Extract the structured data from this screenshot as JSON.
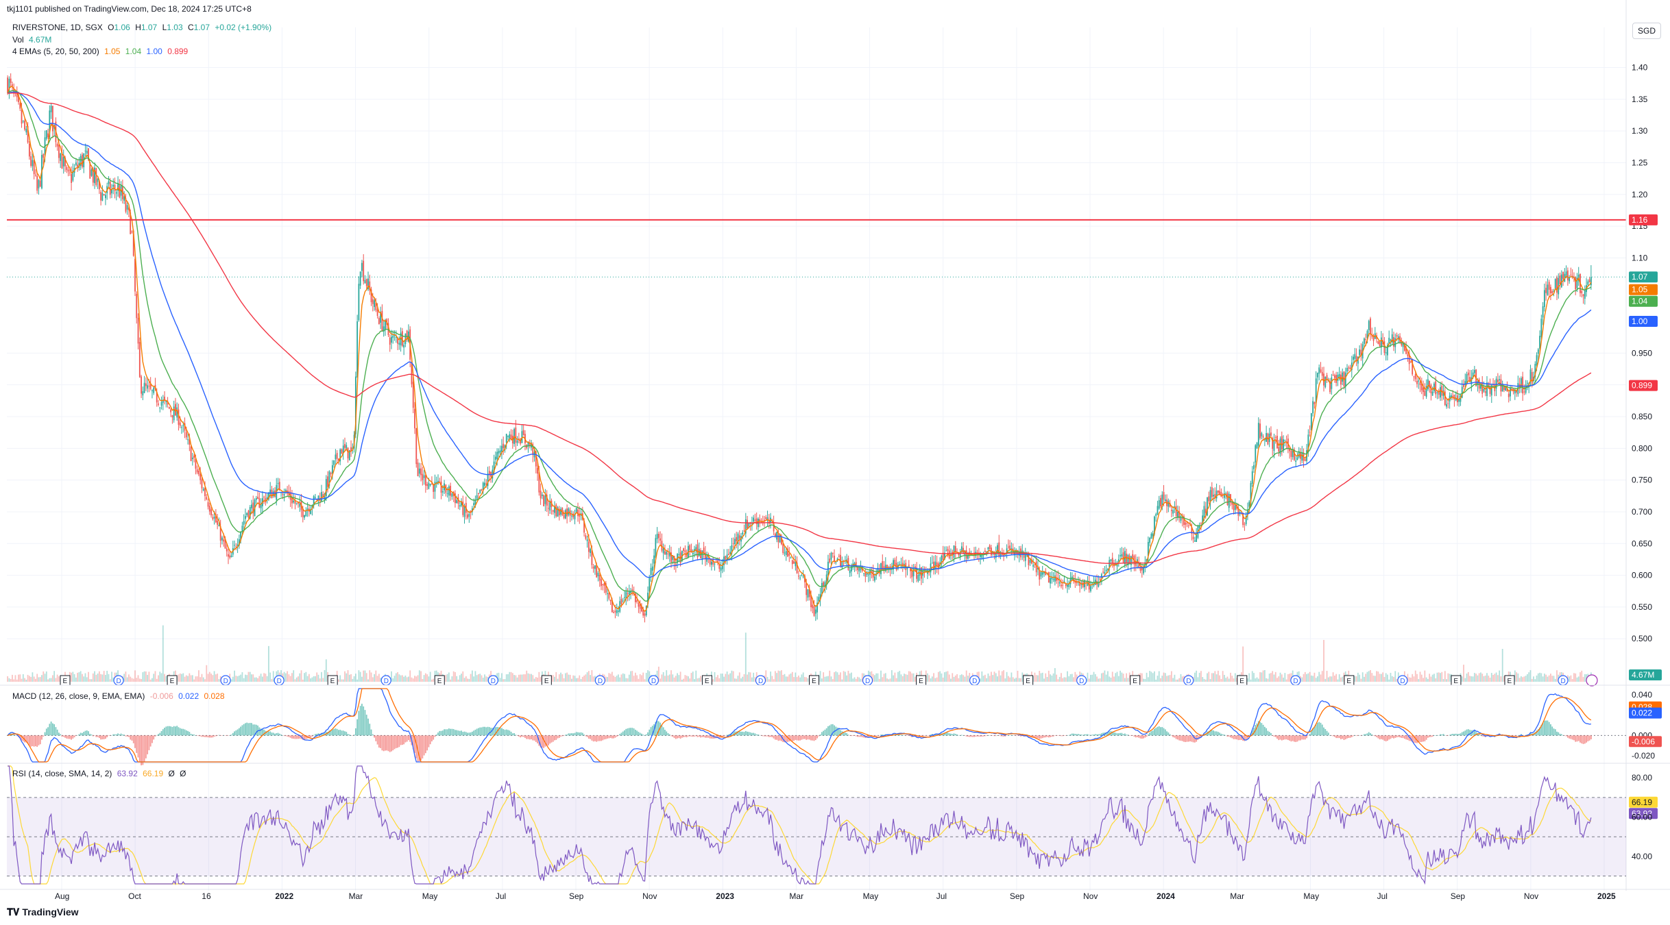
{
  "header": {
    "published": "tkj1101 published on TradingView.com, Dec 18, 2024 17:25 UTC+8",
    "symbol": "RIVERSTONE, 1D, SGX",
    "o_label": "O",
    "o_val": "1.06",
    "h_label": "H",
    "h_val": "1.07",
    "l_label": "L",
    "l_val": "1.03",
    "c_label": "C",
    "c_val": "1.07",
    "change": "+0.02 (+1.90%)",
    "vol_label": "Vol",
    "vol_val": "4.67M",
    "ema_label": "4 EMAs (5, 20, 50, 200)",
    "ema_vals": [
      "1.05",
      "1.04",
      "1.00",
      "0.899"
    ],
    "macd_label": "MACD (12, 26, close, 9, EMA, EMA)",
    "macd_vals": [
      "-0.006",
      "0.022",
      "0.028"
    ],
    "rsi_label": "RSI (14, close, SMA, 14, 2)",
    "rsi_vals": [
      "63.92",
      "66.19",
      "Ø",
      "Ø"
    ]
  },
  "currency_button": "SGD",
  "logo_text": "TradingView",
  "colors": {
    "up": "#26a69a",
    "down": "#ef5350",
    "ema5": "#f57c00",
    "ema20": "#4caf50",
    "ema50": "#2962ff",
    "ema200": "#f23645",
    "hline": "#f23645",
    "macd": "#2962ff",
    "signal": "#ff6d00",
    "rsi": "#7e57c2",
    "rsi_ma": "#fdd835"
  },
  "chart_data": {
    "type": "candlestick",
    "title": "RIVERSTONE, 1D, SGX",
    "price_axis": {
      "ylim": [
        0.47,
        1.42
      ],
      "ticks": [
        "1.40",
        "1.35",
        "1.30",
        "1.25",
        "1.20",
        "1.15",
        "1.10",
        "0.950",
        "0.900",
        "0.850",
        "0.800",
        "0.750",
        "0.700",
        "0.650",
        "0.600",
        "0.550",
        "0.500"
      ],
      "tick_values": [
        1.4,
        1.35,
        1.3,
        1.25,
        1.2,
        1.15,
        1.1,
        0.95,
        0.9,
        0.85,
        0.8,
        0.75,
        0.7,
        0.65,
        0.6,
        0.55,
        0.5
      ]
    },
    "x_axis": {
      "labels": [
        "Aug",
        "Oct",
        "16",
        "2022",
        "Mar",
        "May",
        "Jul",
        "Sep",
        "Nov",
        "2023",
        "Mar",
        "May",
        "Jul",
        "Sep",
        "Nov",
        "2024",
        "Mar",
        "May",
        "Jul",
        "Sep",
        "Nov",
        "2025"
      ],
      "bold": [
        "2022",
        "2023",
        "2024",
        "2025"
      ]
    },
    "horizontal_line": {
      "value": 1.16,
      "label": "1.16"
    },
    "last_price": {
      "value": 1.07,
      "label": "1.07"
    },
    "price_labels": [
      {
        "value": 1.07,
        "label": "1.07",
        "color": "#26a69a"
      },
      {
        "value": 1.05,
        "label": "1.05",
        "color": "#f57c00"
      },
      {
        "value": 1.04,
        "label": "1.04",
        "color": "#4caf50"
      },
      {
        "value": 1.0,
        "label": "1.00",
        "color": "#2962ff"
      },
      {
        "value": 0.899,
        "label": "0.899",
        "color": "#f23645"
      }
    ],
    "close_path": [
      [
        0,
        1.38
      ],
      [
        0.02,
        1.3
      ],
      [
        0.035,
        1.2
      ],
      [
        0.05,
        1.33
      ],
      [
        0.07,
        1.22
      ],
      [
        0.09,
        1.26
      ],
      [
        0.11,
        1.2
      ],
      [
        0.13,
        1.21
      ],
      [
        0.145,
        1.15
      ],
      [
        0.155,
        0.9
      ],
      [
        0.175,
        0.88
      ],
      [
        0.2,
        0.85
      ],
      [
        0.225,
        0.75
      ],
      [
        0.245,
        0.68
      ],
      [
        0.26,
        0.62
      ],
      [
        0.28,
        0.7
      ],
      [
        0.3,
        0.72
      ],
      [
        0.32,
        0.74
      ],
      [
        0.345,
        0.7
      ],
      [
        0.37,
        0.73
      ],
      [
        0.39,
        0.8
      ],
      [
        0.405,
        0.79
      ],
      [
        0.412,
        1.1
      ],
      [
        0.43,
        1.02
      ],
      [
        0.45,
        0.97
      ],
      [
        0.47,
        0.98
      ],
      [
        0.48,
        0.76
      ],
      [
        0.5,
        0.74
      ],
      [
        0.52,
        0.73
      ],
      [
        0.54,
        0.69
      ],
      [
        0.565,
        0.76
      ],
      [
        0.585,
        0.82
      ],
      [
        0.6,
        0.82
      ],
      [
        0.615,
        0.8
      ],
      [
        0.625,
        0.72
      ],
      [
        0.645,
        0.7
      ],
      [
        0.67,
        0.7
      ],
      [
        0.685,
        0.62
      ],
      [
        0.71,
        0.54
      ],
      [
        0.73,
        0.58
      ],
      [
        0.745,
        0.53
      ],
      [
        0.76,
        0.66
      ],
      [
        0.78,
        0.62
      ],
      [
        0.8,
        0.64
      ],
      [
        0.82,
        0.63
      ],
      [
        0.835,
        0.61
      ],
      [
        0.85,
        0.65
      ],
      [
        0.865,
        0.68
      ],
      [
        0.88,
        0.69
      ],
      [
        0.895,
        0.68
      ],
      [
        0.91,
        0.64
      ],
      [
        0.93,
        0.6
      ],
      [
        0.945,
        0.54
      ],
      [
        0.965,
        0.63
      ],
      [
        0.98,
        0.62
      ],
      [
        0.995,
        0.61
      ],
      [
        1.01,
        0.6
      ],
      [
        1.03,
        0.62
      ],
      [
        1.05,
        0.61
      ],
      [
        1.07,
        0.6
      ],
      [
        1.09,
        0.62
      ],
      [
        1.11,
        0.64
      ],
      [
        1.13,
        0.63
      ],
      [
        1.15,
        0.64
      ],
      [
        1.17,
        0.64
      ],
      [
        1.19,
        0.63
      ],
      [
        1.21,
        0.6
      ],
      [
        1.23,
        0.59
      ],
      [
        1.25,
        0.59
      ],
      [
        1.27,
        0.58
      ],
      [
        1.29,
        0.62
      ],
      [
        1.31,
        0.63
      ],
      [
        1.33,
        0.61
      ],
      [
        1.35,
        0.72
      ],
      [
        1.37,
        0.7
      ],
      [
        1.39,
        0.66
      ],
      [
        1.41,
        0.73
      ],
      [
        1.43,
        0.72
      ],
      [
        1.45,
        0.68
      ],
      [
        1.465,
        0.83
      ],
      [
        1.48,
        0.81
      ],
      [
        1.5,
        0.8
      ],
      [
        1.52,
        0.78
      ],
      [
        1.535,
        0.92
      ],
      [
        1.55,
        0.9
      ],
      [
        1.565,
        0.91
      ],
      [
        1.58,
        0.94
      ],
      [
        1.595,
        0.99
      ],
      [
        1.61,
        0.96
      ],
      [
        1.625,
        0.97
      ],
      [
        1.64,
        0.95
      ],
      [
        1.655,
        0.89
      ],
      [
        1.67,
        0.9
      ],
      [
        1.685,
        0.88
      ],
      [
        1.7,
        0.88
      ],
      [
        1.715,
        0.92
      ],
      [
        1.73,
        0.89
      ],
      [
        1.745,
        0.9
      ],
      [
        1.76,
        0.89
      ],
      [
        1.775,
        0.9
      ],
      [
        1.79,
        0.92
      ],
      [
        1.8,
        1.04
      ],
      [
        1.815,
        1.06
      ],
      [
        1.83,
        1.08
      ],
      [
        1.845,
        1.05
      ],
      [
        1.855,
        1.07
      ]
    ],
    "volume": {
      "last": "4.67M"
    },
    "macd": {
      "ylim": [
        -0.026,
        0.046
      ],
      "ticks": [
        "0.040",
        "0.028",
        "0.022",
        "0.000",
        "-0.006",
        "-0.020"
      ],
      "tick_values": [
        0.04,
        0.028,
        0.022,
        0.0,
        -0.006,
        -0.02
      ],
      "last_macd": 0.022,
      "last_signal": 0.028,
      "last_hist": -0.006
    },
    "rsi": {
      "ylim": [
        26,
        86
      ],
      "ticks": [
        "80.00",
        "66.19",
        "63.92",
        "60.00",
        "40.00"
      ],
      "tick_values": [
        80,
        66.19,
        63.92,
        60,
        40
      ],
      "bands": [
        70,
        30
      ],
      "mid": 50,
      "last_rsi": 63.92,
      "last_ma": 66.19
    },
    "events": [
      "E",
      "D",
      "E",
      "D",
      "D",
      "E",
      "D",
      "E",
      "D",
      "E",
      "D",
      "D",
      "E",
      "D",
      "E",
      "D",
      "E",
      "D",
      "E",
      "D",
      "E",
      "D",
      "E",
      "D",
      "E",
      "D",
      "E",
      "E",
      "D"
    ]
  }
}
